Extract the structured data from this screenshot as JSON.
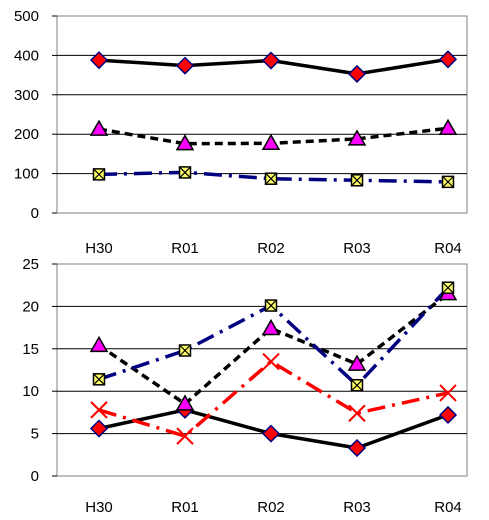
{
  "chart_data": [
    {
      "type": "line",
      "categories": [
        "H30",
        "R01",
        "R02",
        "R03",
        "R04"
      ],
      "ylim": [
        0,
        500
      ],
      "yticks": [
        0,
        100,
        200,
        300,
        400,
        500
      ],
      "series": [
        {
          "values": [
            388,
            374,
            387,
            353,
            390
          ],
          "color": "#000000",
          "dash": "solid",
          "marker": "diamond",
          "marker_fill": "#ff0000",
          "marker_stroke": "#000080"
        },
        {
          "values": [
            213,
            176,
            177,
            188,
            215
          ],
          "color": "#000000",
          "dash": "dashed",
          "marker": "triangle",
          "marker_fill": "#ff00ff",
          "marker_stroke": "#000000"
        },
        {
          "values": [
            98,
            103,
            87,
            83,
            79
          ],
          "color": "#000080",
          "dash": "dashdot",
          "marker": "square-x",
          "marker_fill": "#ffff66",
          "marker_stroke": "#000000"
        }
      ]
    },
    {
      "type": "line",
      "categories": [
        "H30",
        "R01",
        "R02",
        "R03",
        "R04"
      ],
      "ylim": [
        0,
        25
      ],
      "yticks": [
        0,
        5,
        10,
        15,
        20,
        25
      ],
      "series": [
        {
          "values": [
            5.6,
            7.8,
            5.0,
            3.3,
            7.2
          ],
          "color": "#000000",
          "dash": "solid",
          "marker": "diamond",
          "marker_fill": "#ff0000",
          "marker_stroke": "#000080"
        },
        {
          "values": [
            15.4,
            8.5,
            17.4,
            13.2,
            21.5
          ],
          "color": "#000000",
          "dash": "dashed",
          "marker": "triangle",
          "marker_fill": "#ff00ff",
          "marker_stroke": "#000000"
        },
        {
          "values": [
            11.4,
            14.8,
            20.1,
            10.7,
            22.2
          ],
          "color": "#000080",
          "dash": "dashdot",
          "marker": "square-x",
          "marker_fill": "#ffff66",
          "marker_stroke": "#000000"
        },
        {
          "values": [
            7.8,
            4.7,
            13.5,
            7.4,
            9.8
          ],
          "color": "#ff0000",
          "dash": "dashdot",
          "marker": "x",
          "marker_fill": "none",
          "marker_stroke": "#ff0000"
        }
      ]
    }
  ]
}
